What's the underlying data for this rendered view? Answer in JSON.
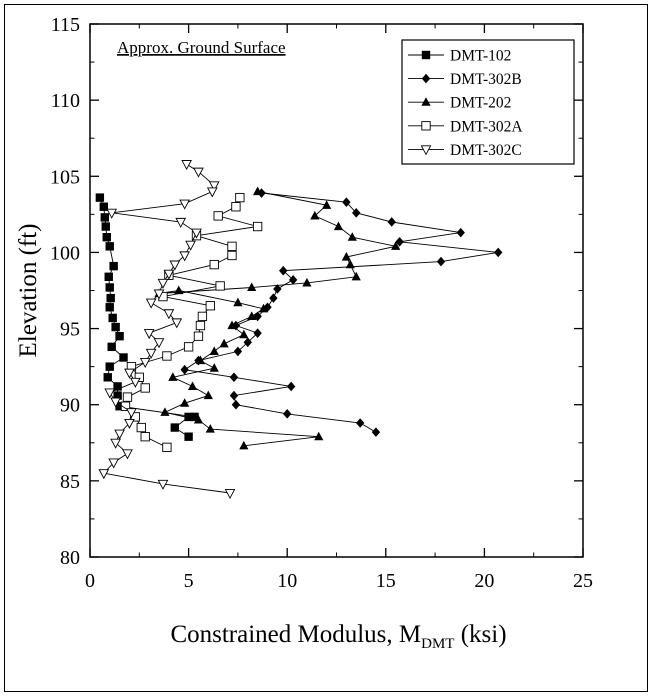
{
  "chart_data": {
    "type": "scatter",
    "title": "",
    "annotation": "Approx. Ground Surface",
    "xlabel_main": "Constrained Modulus, M",
    "xlabel_sub": "DMT",
    "xlabel_unit": " (ksi)",
    "ylabel": "Elevation (ft)",
    "xlim": [
      0,
      25
    ],
    "ylim": [
      80,
      115
    ],
    "xticks": [
      0,
      5,
      10,
      15,
      20,
      25
    ],
    "yticks": [
      80,
      85,
      90,
      95,
      100,
      105,
      110,
      115
    ],
    "grid": false,
    "legend_position": "top-right",
    "series": [
      {
        "name": "DMT-102",
        "marker": "square-filled",
        "points": [
          [
            0.5,
            103.6
          ],
          [
            0.7,
            103.0
          ],
          [
            0.75,
            102.3
          ],
          [
            0.8,
            101.7
          ],
          [
            0.85,
            101.0
          ],
          [
            1.0,
            100.4
          ],
          [
            1.2,
            99.1
          ],
          [
            0.95,
            98.4
          ],
          [
            1.0,
            97.7
          ],
          [
            1.05,
            97.0
          ],
          [
            1.0,
            96.4
          ],
          [
            1.15,
            95.7
          ],
          [
            1.3,
            95.1
          ],
          [
            1.5,
            94.5
          ],
          [
            1.1,
            93.8
          ],
          [
            1.7,
            93.1
          ],
          [
            1.0,
            92.5
          ],
          [
            0.9,
            91.8
          ],
          [
            1.4,
            91.2
          ],
          [
            1.4,
            90.6
          ],
          [
            1.5,
            89.9
          ],
          [
            5.3,
            89.2
          ],
          [
            5.0,
            89.2
          ],
          [
            4.3,
            88.5
          ],
          [
            5.0,
            87.9
          ]
        ]
      },
      {
        "name": "DMT-302B",
        "marker": "diamond-filled",
        "points": [
          [
            8.7,
            103.9
          ],
          [
            13.0,
            103.3
          ],
          [
            13.5,
            102.6
          ],
          [
            15.3,
            102.0
          ],
          [
            18.8,
            101.3
          ],
          [
            15.7,
            100.7
          ],
          [
            20.7,
            100.0
          ],
          [
            17.8,
            99.4
          ],
          [
            9.8,
            98.8
          ],
          [
            10.3,
            98.2
          ],
          [
            9.5,
            97.6
          ],
          [
            9.3,
            97.0
          ],
          [
            9.0,
            96.4
          ],
          [
            8.5,
            95.8
          ],
          [
            7.4,
            95.2
          ],
          [
            8.5,
            94.7
          ],
          [
            8.0,
            94.1
          ],
          [
            7.5,
            93.5
          ],
          [
            5.5,
            92.9
          ],
          [
            4.8,
            92.3
          ],
          [
            7.3,
            91.8
          ],
          [
            10.2,
            91.2
          ],
          [
            7.3,
            90.6
          ],
          [
            7.4,
            90.0
          ],
          [
            10.0,
            89.4
          ],
          [
            13.7,
            88.8
          ],
          [
            14.5,
            88.2
          ]
        ]
      },
      {
        "name": "DMT-202",
        "marker": "triangle-filled",
        "points": [
          [
            8.5,
            104.0
          ],
          [
            12.0,
            103.1
          ],
          [
            11.4,
            102.4
          ],
          [
            12.6,
            101.7
          ],
          [
            13.3,
            101.0
          ],
          [
            15.5,
            100.4
          ],
          [
            13.0,
            99.7
          ],
          [
            13.2,
            99.2
          ],
          [
            13.5,
            98.4
          ],
          [
            11.0,
            98.0
          ],
          [
            8.2,
            97.7
          ],
          [
            3.5,
            97.3
          ],
          [
            4.5,
            97.5
          ],
          [
            7.5,
            96.7
          ],
          [
            8.8,
            96.3
          ],
          [
            8.2,
            95.8
          ],
          [
            7.2,
            95.2
          ],
          [
            7.8,
            94.6
          ],
          [
            6.8,
            94.0
          ],
          [
            6.3,
            93.5
          ],
          [
            5.6,
            92.9
          ],
          [
            6.3,
            92.4
          ],
          [
            4.2,
            91.8
          ],
          [
            5.2,
            91.2
          ],
          [
            6.0,
            90.6
          ],
          [
            4.8,
            90.1
          ],
          [
            3.8,
            89.5
          ],
          [
            5.5,
            89.0
          ],
          [
            6.1,
            88.4
          ],
          [
            11.6,
            87.9
          ],
          [
            7.8,
            87.3
          ]
        ]
      },
      {
        "name": "DMT-302A",
        "marker": "square-open",
        "points": [
          [
            7.6,
            103.6
          ],
          [
            7.4,
            103.0
          ],
          [
            6.5,
            102.4
          ],
          [
            8.5,
            101.7
          ],
          [
            5.4,
            101.1
          ],
          [
            7.2,
            100.4
          ],
          [
            7.2,
            99.8
          ],
          [
            6.3,
            99.2
          ],
          [
            4.0,
            98.5
          ],
          [
            6.6,
            97.8
          ],
          [
            3.7,
            97.1
          ],
          [
            6.1,
            96.5
          ],
          [
            5.7,
            95.8
          ],
          [
            5.6,
            95.2
          ],
          [
            5.5,
            94.5
          ],
          [
            5.0,
            93.8
          ],
          [
            3.9,
            93.2
          ],
          [
            2.1,
            92.5
          ],
          [
            2.5,
            91.8
          ],
          [
            2.8,
            91.1
          ],
          [
            1.9,
            90.5
          ],
          [
            1.8,
            89.9
          ],
          [
            2.3,
            89.2
          ],
          [
            2.6,
            88.5
          ],
          [
            2.8,
            87.9
          ],
          [
            3.9,
            87.2
          ]
        ]
      },
      {
        "name": "DMT-302C",
        "marker": "triangle-down-open",
        "points": [
          [
            4.9,
            105.8
          ],
          [
            5.5,
            105.3
          ],
          [
            6.3,
            104.4
          ],
          [
            6.2,
            104.0
          ],
          [
            4.8,
            103.2
          ],
          [
            1.1,
            102.6
          ],
          [
            4.6,
            102.0
          ],
          [
            5.4,
            101.3
          ],
          [
            5.1,
            100.5
          ],
          [
            4.8,
            99.8
          ],
          [
            4.3,
            99.2
          ],
          [
            4.0,
            98.6
          ],
          [
            3.7,
            98.0
          ],
          [
            3.5,
            97.3
          ],
          [
            3.1,
            96.7
          ],
          [
            4.0,
            96.0
          ],
          [
            4.4,
            95.4
          ],
          [
            3.0,
            94.7
          ],
          [
            3.5,
            94.1
          ],
          [
            3.1,
            93.4
          ],
          [
            2.8,
            92.8
          ],
          [
            2.0,
            92.1
          ],
          [
            2.3,
            91.5
          ],
          [
            1.0,
            90.8
          ],
          [
            1.3,
            90.2
          ],
          [
            2.1,
            89.5
          ],
          [
            2.0,
            88.8
          ],
          [
            1.5,
            88.1
          ],
          [
            1.3,
            87.5
          ],
          [
            1.9,
            86.8
          ],
          [
            1.2,
            86.2
          ],
          [
            0.7,
            85.5
          ],
          [
            3.7,
            84.8
          ],
          [
            7.1,
            84.2
          ]
        ]
      }
    ]
  }
}
